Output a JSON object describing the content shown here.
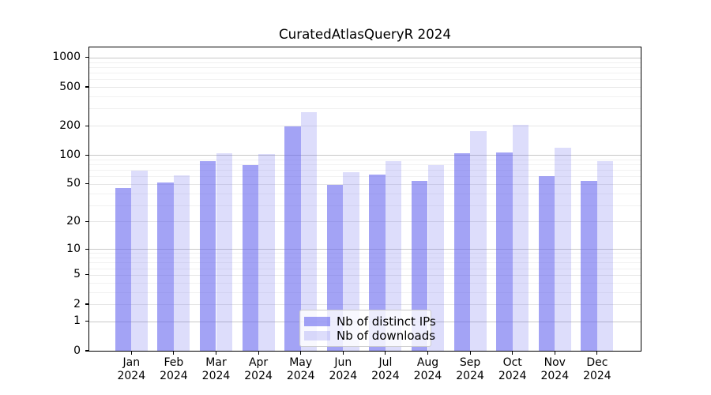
{
  "chart_data": {
    "type": "bar",
    "title": "CuratedAtlasQueryR 2024",
    "xlabel": "",
    "ylabel": "",
    "scale": "log1p",
    "grid": true,
    "ylim": [
      0,
      1270
    ],
    "categories": [
      {
        "label": "Jan",
        "year": "2024"
      },
      {
        "label": "Feb",
        "year": "2024"
      },
      {
        "label": "Mar",
        "year": "2024"
      },
      {
        "label": "Apr",
        "year": "2024"
      },
      {
        "label": "May",
        "year": "2024"
      },
      {
        "label": "Jun",
        "year": "2024"
      },
      {
        "label": "Jul",
        "year": "2024"
      },
      {
        "label": "Aug",
        "year": "2024"
      },
      {
        "label": "Sep",
        "year": "2024"
      },
      {
        "label": "Oct",
        "year": "2024"
      },
      {
        "label": "Nov",
        "year": "2024"
      },
      {
        "label": "Dec",
        "year": "2024"
      }
    ],
    "series": [
      {
        "name": "Nb of distinct IPs",
        "color": "#6666ee",
        "alpha": 0.6,
        "values": [
          45,
          52,
          86,
          78,
          196,
          49,
          63,
          54,
          105,
          107,
          60,
          54
        ]
      },
      {
        "name": "Nb of downloads",
        "color": "#6666ee",
        "alpha": 0.22,
        "values": [
          69,
          61,
          105,
          102,
          275,
          66,
          86,
          79,
          175,
          205,
          118,
          86
        ]
      }
    ],
    "yticks": [
      {
        "value": 0,
        "label": "0"
      },
      {
        "value": 1,
        "label": "1"
      },
      {
        "value": 2,
        "label": "2"
      },
      {
        "value": 5,
        "label": "5"
      },
      {
        "value": 10,
        "label": "10"
      },
      {
        "value": 20,
        "label": "20"
      },
      {
        "value": 50,
        "label": "50"
      },
      {
        "value": 100,
        "label": "100"
      },
      {
        "value": 200,
        "label": "200"
      },
      {
        "value": 500,
        "label": "500"
      },
      {
        "value": 1000,
        "label": "1000"
      }
    ],
    "decade_gridlines": [
      1,
      10,
      100,
      1000
    ],
    "minor_gridlines": [
      3,
      4,
      6,
      7,
      8,
      9,
      30,
      40,
      60,
      70,
      80,
      90,
      300,
      400,
      600,
      700,
      800,
      900
    ],
    "legend": {
      "location": "lower center"
    },
    "colors": {
      "decade_grid": "#c8c8c8",
      "labeled_grid": "#e6e6e6",
      "minor_grid": "#f1f1f1",
      "spine": "#000000",
      "text": "#000000",
      "background": "#ffffff"
    }
  }
}
